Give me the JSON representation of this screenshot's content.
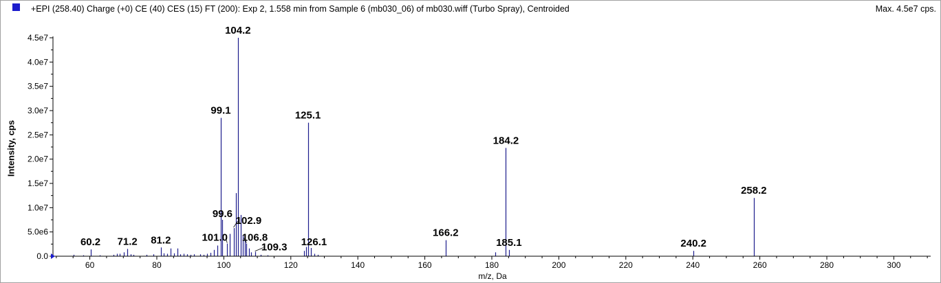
{
  "header": {
    "title": "+EPI (258.40) Charge (+0) CE (40) CES (15) FT (200): Exp 2, 1.558 min from Sample 6 (mb030_06) of mb030.wiff (Turbo Spray), Centroided",
    "max_label": "Max. 4.5e7 cps."
  },
  "colors": {
    "accent": "#1c1ccc",
    "peak": "#1c1c8c",
    "axis": "#000000"
  },
  "chart_data": {
    "type": "bar",
    "title": "+EPI (258.40) Charge (+0) CE (40) CES (15) FT (200): Exp 2, 1.558 min from Sample 6 (mb030_06) of mb030.wiff (Turbo Spray), Centroided",
    "xlabel": "m/z, Da",
    "ylabel": "Intensity, cps",
    "xlim": [
      49,
      311
    ],
    "ylim": [
      0,
      45000000.0
    ],
    "x_ticks": [
      60,
      80,
      100,
      120,
      140,
      160,
      180,
      200,
      220,
      240,
      260,
      280,
      300
    ],
    "y_ticks": [
      {
        "value": 0,
        "label": "0.0"
      },
      {
        "value": 5000000.0,
        "label": "5.0e6"
      },
      {
        "value": 10000000.0,
        "label": "1.0e7"
      },
      {
        "value": 15000000.0,
        "label": "1.5e7"
      },
      {
        "value": 20000000.0,
        "label": "2.0e7"
      },
      {
        "value": 25000000.0,
        "label": "2.5e7"
      },
      {
        "value": 30000000.0,
        "label": "3.0e7"
      },
      {
        "value": 35000000.0,
        "label": "3.5e7"
      },
      {
        "value": 40000000.0,
        "label": "4.0e7"
      },
      {
        "value": 45000000.0,
        "label": "4.5e7"
      }
    ],
    "peaks": [
      {
        "mz": 55.1,
        "i": 300000.0
      },
      {
        "mz": 58.0,
        "i": 200000.0
      },
      {
        "mz": 60.2,
        "i": 1400000.0,
        "label": "60.2"
      },
      {
        "mz": 63.0,
        "i": 200000.0
      },
      {
        "mz": 67.1,
        "i": 300000.0
      },
      {
        "mz": 68.0,
        "i": 500000.0
      },
      {
        "mz": 69.0,
        "i": 500000.0
      },
      {
        "mz": 70.1,
        "i": 800000.0
      },
      {
        "mz": 71.2,
        "i": 1500000.0,
        "label": "71.2"
      },
      {
        "mz": 72.1,
        "i": 400000.0
      },
      {
        "mz": 73.0,
        "i": 300000.0
      },
      {
        "mz": 77.0,
        "i": 300000.0
      },
      {
        "mz": 79.0,
        "i": 400000.0
      },
      {
        "mz": 81.2,
        "i": 1800000.0,
        "label": "81.2"
      },
      {
        "mz": 82.1,
        "i": 600000.0
      },
      {
        "mz": 83.0,
        "i": 500000.0
      },
      {
        "mz": 84.1,
        "i": 1600000.0
      },
      {
        "mz": 85.1,
        "i": 600000.0
      },
      {
        "mz": 86.1,
        "i": 1600000.0
      },
      {
        "mz": 87.0,
        "i": 400000.0
      },
      {
        "mz": 88.1,
        "i": 500000.0
      },
      {
        "mz": 89.0,
        "i": 400000.0
      },
      {
        "mz": 90.0,
        "i": 300000.0
      },
      {
        "mz": 91.0,
        "i": 400000.0
      },
      {
        "mz": 93.0,
        "i": 400000.0
      },
      {
        "mz": 94.0,
        "i": 300000.0
      },
      {
        "mz": 95.0,
        "i": 500000.0
      },
      {
        "mz": 96.1,
        "i": 700000.0
      },
      {
        "mz": 97.0,
        "i": 1300000.0
      },
      {
        "mz": 98.1,
        "i": 2200000.0
      },
      {
        "mz": 99.1,
        "i": 28500000.0,
        "label": "99.1"
      },
      {
        "mz": 99.6,
        "i": 7500000.0,
        "label": "99.6"
      },
      {
        "mz": 101.0,
        "i": 2600000.0,
        "label": "101.0"
      },
      {
        "mz": 101.7,
        "i": 4600000.0
      },
      {
        "mz": 102.9,
        "i": 5800000.0,
        "label": "102.9"
      },
      {
        "mz": 103.6,
        "i": 13000000.0
      },
      {
        "mz": 104.2,
        "i": 45000000.0,
        "label": "104.2"
      },
      {
        "mz": 105.1,
        "i": 8500000.0
      },
      {
        "mz": 105.7,
        "i": 4300000.0
      },
      {
        "mz": 106.2,
        "i": 3800000.0
      },
      {
        "mz": 106.8,
        "i": 2600000.0,
        "label": "106.8"
      },
      {
        "mz": 107.6,
        "i": 1600000.0
      },
      {
        "mz": 108.2,
        "i": 800000.0
      },
      {
        "mz": 109.3,
        "i": 900000.0,
        "label": "109.3"
      },
      {
        "mz": 111.0,
        "i": 300000.0
      },
      {
        "mz": 113.0,
        "i": 200000.0
      },
      {
        "mz": 123.9,
        "i": 1100000.0
      },
      {
        "mz": 124.6,
        "i": 1900000.0
      },
      {
        "mz": 125.1,
        "i": 27500000.0,
        "label": "125.1"
      },
      {
        "mz": 126.1,
        "i": 1700000.0,
        "label": "126.1"
      },
      {
        "mz": 127.0,
        "i": 500000.0
      },
      {
        "mz": 128.0,
        "i": 300000.0
      },
      {
        "mz": 166.2,
        "i": 3300000.0,
        "label": "166.2"
      },
      {
        "mz": 181.0,
        "i": 800000.0
      },
      {
        "mz": 184.2,
        "i": 22300000.0,
        "label": "184.2"
      },
      {
        "mz": 185.1,
        "i": 1300000.0,
        "label": "185.1"
      },
      {
        "mz": 240.2,
        "i": 1100000.0,
        "label": "240.2"
      },
      {
        "mz": 258.2,
        "i": 12000000.0,
        "label": "258.2"
      }
    ]
  }
}
